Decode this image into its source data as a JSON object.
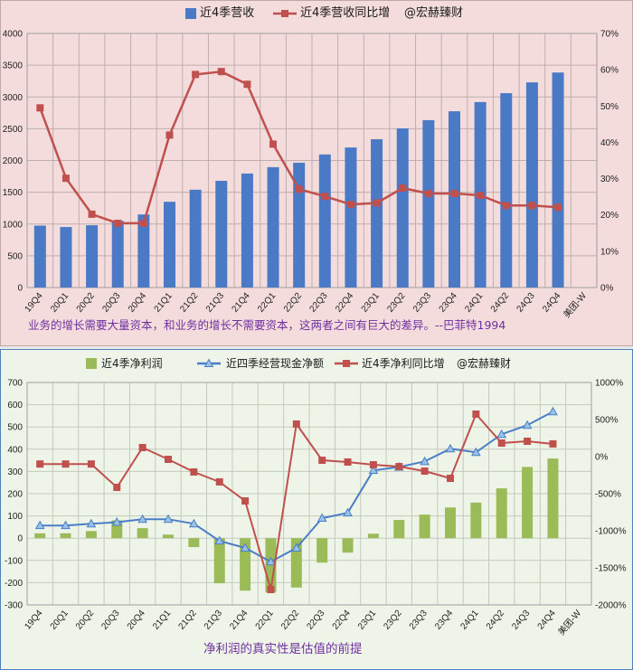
{
  "chart_data": [
    {
      "type": "bar",
      "categories": [
        "19Q4",
        "20Q1",
        "20Q2",
        "20Q3",
        "20Q4",
        "21Q1",
        "21Q2",
        "21Q3",
        "21Q4",
        "22Q1",
        "22Q2",
        "22Q3",
        "22Q4",
        "23Q1",
        "23Q2",
        "23Q3",
        "23Q4",
        "24Q1",
        "24Q2",
        "24Q3",
        "24Q4",
        "美团-W"
      ],
      "series": [
        {
          "name": "近4季营收",
          "type": "bar",
          "axis": "left",
          "color": "#4A7AC6",
          "values": [
            975,
            953,
            980,
            1050,
            1150,
            1350,
            1540,
            1680,
            1795,
            1895,
            1965,
            2095,
            2205,
            2335,
            2505,
            2635,
            2775,
            2920,
            3060,
            3230,
            3385,
            null
          ]
        },
        {
          "name": "近4季营收同比增",
          "type": "line",
          "axis": "right",
          "marker": "square",
          "color": "#C0504D",
          "values": [
            49.5,
            30.1,
            20.2,
            17.7,
            17.7,
            42.0,
            58.7,
            59.5,
            56.0,
            39.5,
            27.1,
            25.1,
            22.9,
            23.3,
            27.4,
            25.9,
            25.9,
            25.4,
            22.6,
            22.6,
            22.1,
            null
          ]
        }
      ],
      "watermark": "@宏赫臻财",
      "left_axis": {
        "min": 0,
        "max": 4000,
        "step": 500,
        "tick_labels": [
          "0",
          "500",
          "1000",
          "1500",
          "2000",
          "2500",
          "3000",
          "3500",
          "4000"
        ]
      },
      "right_axis": {
        "min": 0,
        "max": 70,
        "step": 10,
        "tick_labels": [
          "0%",
          "10%",
          "20%",
          "30%",
          "40%",
          "50%",
          "60%",
          "70%"
        ]
      },
      "grid": true,
      "legend_placement": "top",
      "background_color": "#F4DCDC",
      "caption": "业务的增长需要大量资本，和业务的增长不需要资本，这两者之间有巨大的差异。--巴菲特1994",
      "caption_color": "#7030A0"
    },
    {
      "type": "bar",
      "categories": [
        "19Q4",
        "20Q1",
        "20Q2",
        "20Q3",
        "20Q4",
        "21Q1",
        "21Q2",
        "21Q3",
        "21Q4",
        "22Q1",
        "22Q2",
        "22Q3",
        "22Q4",
        "23Q1",
        "23Q2",
        "23Q3",
        "23Q4",
        "24Q1",
        "24Q2",
        "24Q3",
        "24Q4",
        "美团-W"
      ],
      "series": [
        {
          "name": "近4季净利润",
          "type": "bar",
          "axis": "left",
          "color": "#9BBB59",
          "values": [
            22,
            22,
            32,
            80,
            45,
            16,
            -40,
            -203,
            -236,
            -244,
            -222,
            -110,
            -65,
            20,
            82,
            106,
            138,
            160,
            224,
            320,
            358,
            null
          ]
        },
        {
          "name": "近四季经营现金净额",
          "type": "line",
          "axis": "left",
          "marker": "triangle",
          "color": "#4A7EC7",
          "marker_fill": "#9BC2E6",
          "values": [
            57,
            57,
            65,
            72,
            85,
            85,
            65,
            -12,
            -44,
            -106,
            -44,
            90,
            114,
            305,
            320,
            345,
            402,
            386,
            467,
            508,
            569,
            null
          ]
        },
        {
          "name": "近4季净利同比增",
          "type": "line",
          "axis": "right",
          "marker": "square",
          "color": "#C0504D",
          "values": [
            -100,
            -100,
            -100,
            -415,
            122,
            -37,
            -207,
            -341,
            -598,
            -1793,
            439,
            -49,
            -73,
            -110,
            -134,
            -195,
            -293,
            573,
            183,
            207,
            171,
            null
          ]
        }
      ],
      "watermark": "@宏赫臻财",
      "left_axis": {
        "min": -300,
        "max": 700,
        "step": 100,
        "tick_labels": [
          "-300",
          "-200",
          "-100",
          "0",
          "100",
          "200",
          "300",
          "400",
          "500",
          "600",
          "700"
        ],
        "min_label_color": "#FF0000"
      },
      "right_axis": {
        "min": -2000,
        "max": 1000,
        "step": 500,
        "tick_labels": [
          "-2000%",
          "-1500%",
          "-1000%",
          "-500%",
          "0%",
          "500%",
          "1000%"
        ]
      },
      "grid": true,
      "legend_placement": "top",
      "background_color": "#EEF5E8",
      "caption": "净利润的真实性是估值的前提",
      "caption_color": "#7030A0"
    }
  ]
}
